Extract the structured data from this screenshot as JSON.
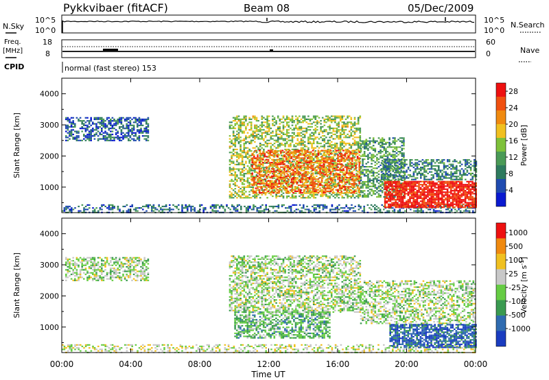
{
  "header": {
    "station": "Pykkvibaer (fitACF)",
    "beam": "Beam 08",
    "date": "05/Dec/2009"
  },
  "strips": {
    "nsky": {
      "label": "N.Sky",
      "top_tick": "10^5",
      "bottom_tick": "10^0"
    },
    "nsearch": {
      "label": "N.Search",
      "top_tick": "10^5",
      "bottom_tick": "10^0"
    },
    "freq": {
      "label_line1": "Freq.",
      "label_line2": "[MHz]",
      "top_tick": "18",
      "bottom_tick": "8"
    },
    "nave": {
      "label": "Nave",
      "top_tick": "60",
      "bottom_tick": "0"
    },
    "cpid": {
      "label": "CPID",
      "value": "normal (fast stereo) 153"
    }
  },
  "chart_data": [
    {
      "type": "heatmap",
      "title": "",
      "xlabel": "",
      "ylabel": "Slant Range [km]",
      "xlim": [
        "00:00",
        "00:00"
      ],
      "ylim": [
        180,
        4500
      ],
      "yticks": [
        "1000",
        "2000",
        "3000",
        "4000"
      ],
      "colorbar": {
        "label": "Power [dB]",
        "ticks": [
          "4",
          "8",
          "12",
          "16",
          "20",
          "24",
          "28"
        ],
        "colors": [
          "#0a1ad0",
          "#1f4bb0",
          "#2e7a5e",
          "#4a9a56",
          "#7ec13a",
          "#f0c020",
          "#f08a10",
          "#f05010",
          "#ee1010"
        ],
        "range": [
          0,
          30
        ]
      },
      "regions": [
        {
          "t0": 0.0,
          "t1": 24.0,
          "r0": 180,
          "r1": 450,
          "level": 0.25,
          "density": 0.45
        },
        {
          "t0": 0.2,
          "t1": 5.0,
          "r0": 2500,
          "r1": 3250,
          "level": 0.2,
          "density": 0.55
        },
        {
          "t0": 9.7,
          "t1": 17.3,
          "r0": 650,
          "r1": 3300,
          "level": 0.5,
          "density": 0.5
        },
        {
          "t0": 11.0,
          "t1": 17.3,
          "r0": 800,
          "r1": 2200,
          "level": 0.78,
          "density": 0.55
        },
        {
          "t0": 17.3,
          "t1": 19.8,
          "r0": 700,
          "r1": 2600,
          "level": 0.38,
          "density": 0.5
        },
        {
          "t0": 18.5,
          "t1": 24.0,
          "r0": 1250,
          "r1": 1900,
          "level": 0.3,
          "density": 0.55
        },
        {
          "t0": 18.7,
          "t1": 24.0,
          "r0": 330,
          "r1": 1200,
          "level": 0.95,
          "density": 0.85
        }
      ]
    },
    {
      "type": "heatmap",
      "title": "",
      "xlabel": "Time UT",
      "ylabel": "Slant Range [km]",
      "xlim": [
        "00:00",
        "00:00"
      ],
      "ylim": [
        180,
        4500
      ],
      "xticks": [
        "00:00",
        "04:00",
        "08:00",
        "12:00",
        "16:00",
        "20:00",
        "00:00"
      ],
      "yticks": [
        "1000",
        "2000",
        "3000",
        "4000"
      ],
      "colorbar": {
        "label": "Velocity [m s^-1]",
        "ticks": [
          "1000",
          "500",
          "100",
          "25",
          "-25",
          "-100",
          "-500",
          "-1000"
        ],
        "colors": [
          "#1a3cc0",
          "#2f6bb0",
          "#3a9a50",
          "#66cc44",
          "#c8c8c8",
          "#f0c020",
          "#f08a10",
          "#ee1010"
        ]
      },
      "regions": [
        {
          "t0": 0.0,
          "t1": 24.0,
          "r0": 180,
          "r1": 450,
          "level": 0.55,
          "density": 0.35
        },
        {
          "t0": 0.2,
          "t1": 5.0,
          "r0": 2500,
          "r1": 3250,
          "level": 0.5,
          "density": 0.55
        },
        {
          "t0": 9.7,
          "t1": 17.3,
          "r0": 1500,
          "r1": 3300,
          "level": 0.5,
          "density": 0.55
        },
        {
          "t0": 10.0,
          "t1": 15.5,
          "r0": 650,
          "r1": 1500,
          "level": 0.38,
          "density": 0.6
        },
        {
          "t0": 17.3,
          "t1": 24.0,
          "r0": 1100,
          "r1": 2500,
          "level": 0.5,
          "density": 0.5
        },
        {
          "t0": 19.0,
          "t1": 24.0,
          "r0": 330,
          "r1": 1100,
          "level": 0.15,
          "density": 0.75
        }
      ]
    }
  ]
}
